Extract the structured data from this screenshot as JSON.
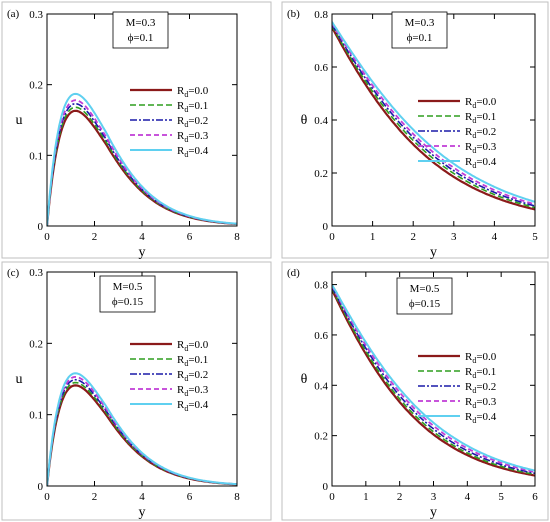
{
  "colors": {
    "Rd=0.0": "#8b1a1a",
    "Rd=0.1": "#2e9e1f",
    "Rd=0.2": "#1a1aa8",
    "Rd=0.3": "#c03cd6",
    "Rd=0.4": "#5fd0f0"
  },
  "chart_data": [
    {
      "type": "line",
      "panel_label": "(a)",
      "xlabel": "y",
      "ylabel": "u",
      "xlim": [
        0,
        8
      ],
      "ylim": [
        0,
        0.3
      ],
      "xticks": [
        "0",
        "2",
        "4",
        "6",
        "8"
      ],
      "yticks": [
        "0",
        "0.1",
        "0.2",
        "0.3"
      ],
      "params": [
        "M=0.3",
        "ϕ=0.1"
      ],
      "legend": [
        "0.0",
        "0.1",
        "0.2",
        "0.3",
        "0.4"
      ],
      "legend_position": "upper-right",
      "profile": "velocity",
      "series": [
        {
          "name": "Rd=0.0",
          "peak_y": 0.163,
          "peak_x": 1.2,
          "decay": 0.75
        },
        {
          "name": "Rd=0.1",
          "peak_y": 0.168,
          "peak_x": 1.2,
          "decay": 0.75
        },
        {
          "name": "Rd=0.2",
          "peak_y": 0.173,
          "peak_x": 1.2,
          "decay": 0.75
        },
        {
          "name": "Rd=0.3",
          "peak_y": 0.178,
          "peak_x": 1.2,
          "decay": 0.75
        },
        {
          "name": "Rd=0.4",
          "peak_y": 0.187,
          "peak_x": 1.2,
          "decay": 0.75
        }
      ]
    },
    {
      "type": "line",
      "panel_label": "(b)",
      "xlabel": "y",
      "ylabel": "θ",
      "xlim": [
        0,
        5
      ],
      "ylim": [
        0,
        0.8
      ],
      "xticks": [
        "0",
        "1",
        "2",
        "3",
        "4",
        "5"
      ],
      "yticks": [
        "0",
        "0.2",
        "0.4",
        "0.6",
        "0.8"
      ],
      "params": [
        "M=0.3",
        "ϕ=0.1"
      ],
      "legend": [
        "0.0",
        "0.1",
        "0.2",
        "0.3",
        "0.4"
      ],
      "legend_position": "right",
      "profile": "temperature",
      "series": [
        {
          "name": "Rd=0.0",
          "start": 0.75,
          "rate": 0.68
        },
        {
          "name": "Rd=0.1",
          "start": 0.755,
          "rate": 0.66
        },
        {
          "name": "Rd=0.2",
          "start": 0.76,
          "rate": 0.645
        },
        {
          "name": "Rd=0.3",
          "start": 0.765,
          "rate": 0.63
        },
        {
          "name": "Rd=0.4",
          "start": 0.77,
          "rate": 0.61
        }
      ]
    },
    {
      "type": "line",
      "panel_label": "(c)",
      "xlabel": "y",
      "ylabel": "u",
      "xlim": [
        0,
        8
      ],
      "ylim": [
        0,
        0.3
      ],
      "xticks": [
        "0",
        "2",
        "4",
        "6",
        "8"
      ],
      "yticks": [
        "0",
        "0.1",
        "0.2",
        "0.3"
      ],
      "params": [
        "M=0.5",
        "ϕ=0.15"
      ],
      "legend": [
        "0.0",
        "0.1",
        "0.2",
        "0.3",
        "0.4"
      ],
      "legend_position": "right",
      "profile": "velocity",
      "series": [
        {
          "name": "Rd=0.0",
          "peak_y": 0.141,
          "peak_x": 1.2,
          "decay": 0.78
        },
        {
          "name": "Rd=0.1",
          "peak_y": 0.145,
          "peak_x": 1.2,
          "decay": 0.78
        },
        {
          "name": "Rd=0.2",
          "peak_y": 0.149,
          "peak_x": 1.2,
          "decay": 0.78
        },
        {
          "name": "Rd=0.3",
          "peak_y": 0.153,
          "peak_x": 1.2,
          "decay": 0.78
        },
        {
          "name": "Rd=0.4",
          "peak_y": 0.158,
          "peak_x": 1.2,
          "decay": 0.78
        }
      ]
    },
    {
      "type": "line",
      "panel_label": "(d)",
      "xlabel": "y",
      "ylabel": "θ",
      "xlim": [
        0,
        6
      ],
      "ylim": [
        0,
        0.85
      ],
      "xticks": [
        "0",
        "1",
        "2",
        "3",
        "4",
        "5",
        "6"
      ],
      "yticks": [
        "0",
        "0.2",
        "0.4",
        "0.6",
        "0.8"
      ],
      "params": [
        "M=0.5",
        "ϕ=0.15"
      ],
      "legend": [
        "0.0",
        "0.1",
        "0.2",
        "0.3",
        "0.4"
      ],
      "legend_position": "right",
      "profile": "temperature",
      "series": [
        {
          "name": "Rd=0.0",
          "start": 0.78,
          "rate": 0.66
        },
        {
          "name": "Rd=0.1",
          "start": 0.785,
          "rate": 0.645
        },
        {
          "name": "Rd=0.2",
          "start": 0.79,
          "rate": 0.63
        },
        {
          "name": "Rd=0.3",
          "start": 0.795,
          "rate": 0.615
        },
        {
          "name": "Rd=0.4",
          "start": 0.8,
          "rate": 0.6
        }
      ]
    }
  ]
}
